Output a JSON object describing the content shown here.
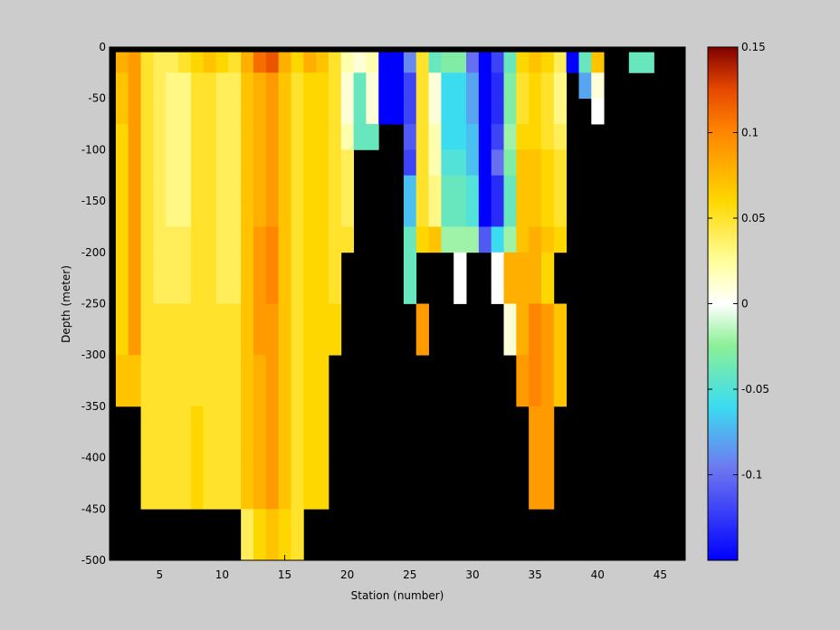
{
  "chart_data": {
    "type": "heatmap",
    "title": "",
    "xlabel": "Station (number)",
    "ylabel": "Depth (meter)",
    "xlim": [
      1,
      47
    ],
    "ylim": [
      -500,
      0
    ],
    "xticks": [
      "5",
      "10",
      "15",
      "20",
      "25",
      "30",
      "35",
      "40",
      "45"
    ],
    "xtick_values": [
      5,
      10,
      15,
      20,
      25,
      30,
      35,
      40,
      45
    ],
    "yticks": [
      "0",
      "-50",
      "-100",
      "-150",
      "-200",
      "-250",
      "-300",
      "-350",
      "-400",
      "-450",
      "-500"
    ],
    "ytick_values": [
      0,
      -50,
      -100,
      -150,
      -200,
      -250,
      -300,
      -350,
      -400,
      -450,
      -500
    ],
    "colorbar": {
      "range": [
        -0.15,
        0.15
      ],
      "ticks": [
        "0.15",
        "0.1",
        "0.05",
        "0",
        "-0.05",
        "-0.1"
      ],
      "tick_values": [
        0.15,
        0.1,
        0.05,
        0,
        -0.05,
        -0.1
      ],
      "colormap": "jet-with-white-center"
    },
    "missing_color": "#000000",
    "depth_bins_top": [
      0,
      -5,
      -25,
      -50,
      -75,
      -100,
      -125,
      -150,
      -175,
      -200,
      -225,
      -250,
      -300,
      -350,
      -400,
      -450
    ],
    "depth_bins_bottom": [
      -5,
      -25,
      -50,
      -75,
      -100,
      -125,
      -150,
      -175,
      -200,
      -225,
      -250,
      -300,
      -350,
      -400,
      -450,
      -500
    ],
    "stations": [
      2,
      3,
      4,
      5,
      6,
      7,
      8,
      9,
      10,
      11,
      12,
      13,
      14,
      15,
      16,
      17,
      18,
      19,
      20,
      21,
      22,
      23,
      24,
      25,
      26,
      27,
      28,
      29,
      30,
      31,
      32,
      33,
      34,
      35,
      36,
      37,
      38,
      39,
      40,
      41,
      42,
      43,
      44,
      45,
      46
    ],
    "grid": [
      [
        null,
        null,
        null,
        null,
        null,
        null,
        null,
        null,
        null,
        null,
        null,
        null,
        null,
        null,
        null,
        null,
        null,
        null,
        null,
        null,
        null,
        null,
        null,
        null,
        null,
        null,
        null,
        null,
        null,
        null,
        null,
        null,
        null,
        null,
        null,
        null,
        null,
        null,
        null,
        null,
        null,
        null,
        null,
        null,
        null
      ],
      [
        0.08,
        0.09,
        0.05,
        0.04,
        0.04,
        0.05,
        0.06,
        0.07,
        0.06,
        0.05,
        0.08,
        0.11,
        0.12,
        0.08,
        0.06,
        0.08,
        0.07,
        0.05,
        0.02,
        0.01,
        0.02,
        -0.15,
        -0.15,
        -0.09,
        0.05,
        -0.04,
        -0.03,
        -0.03,
        -0.1,
        -0.15,
        -0.12,
        -0.04,
        0.06,
        0.07,
        0.06,
        0.04,
        -0.15,
        -0.04,
        0.07,
        null,
        null,
        -0.04,
        -0.04,
        null,
        null
      ],
      [
        0.07,
        0.09,
        0.05,
        0.04,
        0.03,
        0.03,
        0.05,
        0.05,
        0.04,
        0.04,
        0.07,
        0.08,
        0.09,
        0.07,
        0.05,
        0.06,
        0.06,
        0.05,
        0.01,
        -0.04,
        0.01,
        -0.15,
        -0.15,
        -0.12,
        0.05,
        0.01,
        -0.06,
        -0.06,
        -0.08,
        -0.15,
        -0.13,
        -0.03,
        0.05,
        0.06,
        0.05,
        0.03,
        null,
        -0.08,
        0.01,
        null,
        null,
        null,
        null,
        null,
        null
      ],
      [
        0.07,
        0.09,
        0.05,
        0.04,
        0.03,
        0.03,
        0.05,
        0.05,
        0.04,
        0.04,
        0.07,
        0.08,
        0.09,
        0.07,
        0.05,
        0.06,
        0.06,
        0.05,
        0.01,
        -0.04,
        0.01,
        -0.15,
        -0.15,
        -0.12,
        0.05,
        0.01,
        -0.06,
        -0.06,
        -0.08,
        -0.15,
        -0.13,
        -0.03,
        0.05,
        0.06,
        0.05,
        0.03,
        null,
        null,
        0.0,
        null,
        null,
        null,
        null,
        null,
        null
      ],
      [
        0.06,
        0.09,
        0.05,
        0.04,
        0.03,
        0.03,
        0.05,
        0.05,
        0.04,
        0.04,
        0.07,
        0.08,
        0.09,
        0.07,
        0.05,
        0.06,
        0.06,
        0.05,
        0.02,
        -0.04,
        -0.04,
        null,
        null,
        -0.11,
        0.05,
        0.02,
        -0.06,
        -0.06,
        -0.07,
        -0.15,
        -0.12,
        -0.02,
        0.06,
        0.06,
        0.05,
        0.04,
        null,
        null,
        null,
        null,
        null,
        null,
        null,
        null,
        null
      ],
      [
        0.06,
        0.09,
        0.05,
        0.04,
        0.03,
        0.03,
        0.05,
        0.05,
        0.04,
        0.04,
        0.07,
        0.08,
        0.09,
        0.07,
        0.05,
        0.06,
        0.06,
        0.05,
        0.04,
        null,
        null,
        null,
        null,
        -0.12,
        0.05,
        0.02,
        -0.05,
        -0.05,
        -0.07,
        -0.15,
        -0.1,
        -0.03,
        0.07,
        0.07,
        0.06,
        0.05,
        null,
        null,
        null,
        null,
        null,
        null,
        null,
        null,
        null
      ],
      [
        0.06,
        0.09,
        0.05,
        0.04,
        0.03,
        0.03,
        0.05,
        0.05,
        0.04,
        0.04,
        0.07,
        0.08,
        0.09,
        0.07,
        0.05,
        0.06,
        0.06,
        0.05,
        0.04,
        null,
        null,
        null,
        null,
        -0.07,
        0.05,
        0.03,
        -0.04,
        -0.04,
        -0.05,
        -0.15,
        -0.13,
        -0.04,
        0.07,
        0.07,
        0.06,
        0.05,
        null,
        null,
        null,
        null,
        null,
        null,
        null,
        null,
        null
      ],
      [
        0.06,
        0.09,
        0.05,
        0.04,
        0.03,
        0.03,
        0.05,
        0.05,
        0.04,
        0.04,
        0.07,
        0.08,
        0.09,
        0.07,
        0.05,
        0.06,
        0.06,
        0.05,
        0.04,
        null,
        null,
        null,
        null,
        -0.07,
        0.05,
        0.03,
        -0.04,
        -0.04,
        -0.05,
        -0.15,
        -0.13,
        -0.04,
        0.07,
        0.07,
        0.06,
        0.05,
        null,
        null,
        null,
        null,
        null,
        null,
        null,
        null,
        null
      ],
      [
        0.06,
        0.09,
        0.05,
        0.04,
        0.04,
        0.04,
        0.05,
        0.05,
        0.04,
        0.04,
        0.07,
        0.09,
        0.1,
        0.07,
        0.05,
        0.06,
        0.06,
        0.05,
        0.05,
        null,
        null,
        null,
        null,
        -0.04,
        0.06,
        0.07,
        -0.02,
        -0.02,
        -0.02,
        -0.11,
        -0.06,
        -0.02,
        0.07,
        0.08,
        0.07,
        0.06,
        null,
        null,
        null,
        null,
        null,
        null,
        null,
        null,
        null
      ],
      [
        0.06,
        0.09,
        0.05,
        0.04,
        0.04,
        0.04,
        0.05,
        0.05,
        0.04,
        0.04,
        0.07,
        0.09,
        0.1,
        0.07,
        0.05,
        0.06,
        0.06,
        0.05,
        null,
        null,
        null,
        null,
        null,
        -0.04,
        null,
        null,
        null,
        0.0,
        null,
        null,
        0.0,
        0.08,
        0.08,
        0.08,
        0.06,
        null,
        null,
        null,
        null,
        null,
        null,
        null,
        null,
        null,
        null
      ],
      [
        0.06,
        0.09,
        0.05,
        0.04,
        0.04,
        0.04,
        0.05,
        0.05,
        0.04,
        0.04,
        0.07,
        0.09,
        0.1,
        0.07,
        0.05,
        0.06,
        0.06,
        0.05,
        null,
        null,
        null,
        null,
        null,
        -0.04,
        null,
        null,
        null,
        0.0,
        null,
        null,
        0.0,
        0.08,
        0.08,
        0.08,
        0.06,
        null,
        null,
        null,
        null,
        null,
        null,
        null,
        null,
        null,
        null
      ],
      [
        0.06,
        0.09,
        0.05,
        0.05,
        0.05,
        0.05,
        0.05,
        0.05,
        0.05,
        0.05,
        0.07,
        0.09,
        0.09,
        0.07,
        0.05,
        0.06,
        0.06,
        0.06,
        null,
        null,
        null,
        null,
        null,
        null,
        0.09,
        null,
        null,
        null,
        null,
        null,
        null,
        0.01,
        0.08,
        0.1,
        0.09,
        0.07,
        null,
        null,
        null,
        null,
        null,
        null,
        null,
        null,
        null
      ],
      [
        0.07,
        0.07,
        0.05,
        0.05,
        0.05,
        0.05,
        0.05,
        0.05,
        0.05,
        0.05,
        0.07,
        0.08,
        0.09,
        0.07,
        0.05,
        0.06,
        0.06,
        null,
        null,
        null,
        null,
        null,
        null,
        null,
        null,
        null,
        null,
        null,
        null,
        null,
        null,
        null,
        0.09,
        0.1,
        0.09,
        0.07,
        null,
        null,
        null,
        null,
        null,
        null,
        null,
        null,
        null
      ],
      [
        null,
        null,
        0.05,
        0.05,
        0.05,
        0.05,
        0.06,
        0.05,
        0.05,
        0.05,
        0.07,
        0.08,
        0.09,
        0.07,
        0.05,
        0.06,
        0.06,
        null,
        null,
        null,
        null,
        null,
        null,
        null,
        null,
        null,
        null,
        null,
        null,
        null,
        null,
        null,
        null,
        0.09,
        0.09,
        null,
        null,
        null,
        null,
        null,
        null,
        null,
        null,
        null,
        null
      ],
      [
        null,
        null,
        0.05,
        0.05,
        0.05,
        0.05,
        0.06,
        0.05,
        0.05,
        0.05,
        0.07,
        0.08,
        0.09,
        0.07,
        0.05,
        0.06,
        0.06,
        null,
        null,
        null,
        null,
        null,
        null,
        null,
        null,
        null,
        null,
        null,
        null,
        null,
        null,
        null,
        null,
        0.09,
        0.09,
        null,
        null,
        null,
        null,
        null,
        null,
        null,
        null,
        null,
        null
      ],
      [
        null,
        null,
        null,
        null,
        null,
        null,
        null,
        null,
        null,
        null,
        0.04,
        0.06,
        0.07,
        0.06,
        0.05,
        null,
        null,
        null,
        null,
        null,
        null,
        null,
        null,
        null,
        null,
        null,
        null,
        null,
        null,
        null,
        null,
        null,
        null,
        null,
        null,
        null,
        null,
        null,
        null,
        null,
        null,
        null,
        null,
        null,
        null
      ]
    ]
  }
}
